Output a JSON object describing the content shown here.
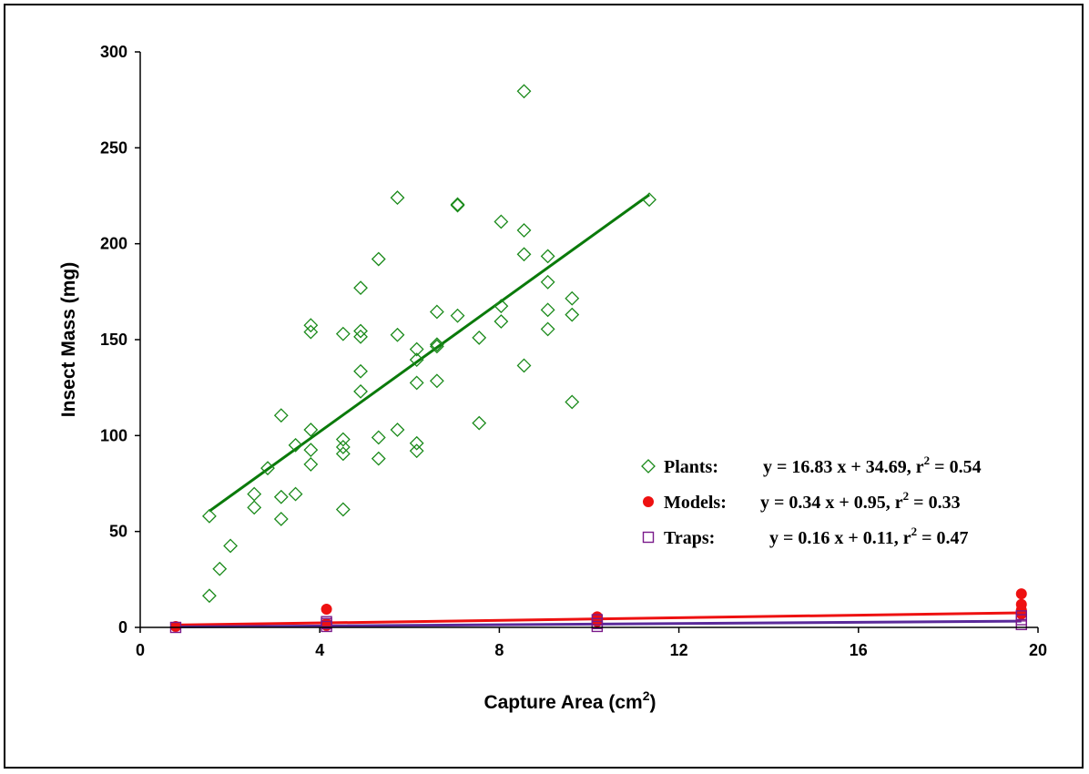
{
  "chart_data": {
    "type": "scatter",
    "title": "",
    "xlabel": "Capture Area (cm2)",
    "xlabel_main": "Capture Area (cm",
    "xlabel_sup": "2",
    "xlabel_end": ")",
    "ylabel": "Insect Mass (mg)",
    "xlim": [
      0,
      20
    ],
    "ylim": [
      0,
      300
    ],
    "xticks": [
      "0",
      "4",
      "8",
      "12",
      "16",
      "20"
    ],
    "yticks": [
      "0",
      "50",
      "100",
      "150",
      "200",
      "250",
      "300"
    ],
    "xtick_values": [
      0,
      4,
      8,
      12,
      16,
      20
    ],
    "ytick_values": [
      0,
      50,
      100,
      150,
      200,
      250,
      300
    ],
    "grid": false,
    "legend_position": "right",
    "series": [
      {
        "name": "Plants:",
        "marker": "diamond-open",
        "color": "#1a8a1a",
        "trendline_color": "#0a7a0a",
        "equation": "y = 16.83 x + 34.69, r",
        "equation_sup": "2",
        "equation_end": " = 0.54",
        "slope": 16.83,
        "intercept": 34.69,
        "fit_x_range": [
          1.54,
          11.34
        ],
        "points": [
          [
            1.54,
            16.5
          ],
          [
            1.54,
            58
          ],
          [
            1.77,
            30.5
          ],
          [
            2.01,
            42.5
          ],
          [
            2.54,
            62.5
          ],
          [
            2.54,
            69.5
          ],
          [
            2.84,
            83
          ],
          [
            3.14,
            56.5
          ],
          [
            3.14,
            68
          ],
          [
            3.14,
            110.5
          ],
          [
            3.46,
            95
          ],
          [
            3.46,
            69.5
          ],
          [
            3.8,
            154
          ],
          [
            3.8,
            157.5
          ],
          [
            3.8,
            103
          ],
          [
            3.8,
            92.5
          ],
          [
            3.8,
            85
          ],
          [
            4.52,
            61.5
          ],
          [
            4.52,
            90.5
          ],
          [
            4.52,
            94
          ],
          [
            4.52,
            98
          ],
          [
            4.52,
            153
          ],
          [
            4.91,
            123
          ],
          [
            4.91,
            133.5
          ],
          [
            4.91,
            151.5
          ],
          [
            4.91,
            154.5
          ],
          [
            4.91,
            177
          ],
          [
            5.31,
            88
          ],
          [
            5.31,
            99
          ],
          [
            5.31,
            192
          ],
          [
            5.73,
            103
          ],
          [
            5.73,
            152.5
          ],
          [
            5.73,
            224
          ],
          [
            6.16,
            92
          ],
          [
            6.16,
            96
          ],
          [
            6.16,
            127.5
          ],
          [
            6.16,
            139.5
          ],
          [
            6.16,
            145
          ],
          [
            6.61,
            128.5
          ],
          [
            6.61,
            146.5
          ],
          [
            6.61,
            147.5
          ],
          [
            6.61,
            164.5
          ],
          [
            7.07,
            162.5
          ],
          [
            7.07,
            220
          ],
          [
            7.07,
            220.5
          ],
          [
            7.55,
            106.5
          ],
          [
            7.55,
            151
          ],
          [
            8.04,
            159.5
          ],
          [
            8.04,
            167.5
          ],
          [
            8.04,
            211.5
          ],
          [
            8.55,
            136.5
          ],
          [
            8.55,
            194.5
          ],
          [
            8.55,
            207
          ],
          [
            8.55,
            279.5
          ],
          [
            9.08,
            155.5
          ],
          [
            9.08,
            165.5
          ],
          [
            9.08,
            180
          ],
          [
            9.08,
            193.5
          ],
          [
            9.62,
            117.5
          ],
          [
            9.62,
            163
          ],
          [
            9.62,
            171.5
          ],
          [
            11.34,
            223
          ]
        ]
      },
      {
        "name": "Models:",
        "marker": "circle-filled",
        "color": "#ee1111",
        "trendline_color": "#ee1111",
        "equation": "y = 0.34 x + 0.95, r",
        "equation_sup": "2",
        "equation_end": " = 0.33",
        "slope": 0.34,
        "intercept": 0.95,
        "fit_x_range": [
          0.79,
          19.63
        ],
        "points": [
          [
            0.79,
            0.5
          ],
          [
            4.15,
            9.5
          ],
          [
            4.15,
            2
          ],
          [
            4.15,
            1
          ],
          [
            10.18,
            5.5
          ],
          [
            10.18,
            4.5
          ],
          [
            10.18,
            3
          ],
          [
            19.63,
            17.5
          ],
          [
            19.63,
            12
          ],
          [
            19.63,
            9
          ],
          [
            19.63,
            7
          ]
        ]
      },
      {
        "name": "Traps:",
        "marker": "square-open",
        "color": "#7a1a8a",
        "trendline_color": "#5a2a9a",
        "equation": "y = 0.16 x + 0.11, r",
        "equation_sup": "2",
        "equation_end": " = 0.47",
        "slope": 0.16,
        "intercept": 0.11,
        "fit_x_range": [
          0.79,
          19.63
        ],
        "points": [
          [
            0.79,
            0
          ],
          [
            4.15,
            0.5
          ],
          [
            4.15,
            2
          ],
          [
            4.15,
            3
          ],
          [
            10.18,
            0.5
          ],
          [
            10.18,
            2
          ],
          [
            10.18,
            4
          ],
          [
            19.63,
            1.5
          ],
          [
            19.63,
            4
          ],
          [
            19.63,
            6
          ]
        ]
      }
    ]
  }
}
